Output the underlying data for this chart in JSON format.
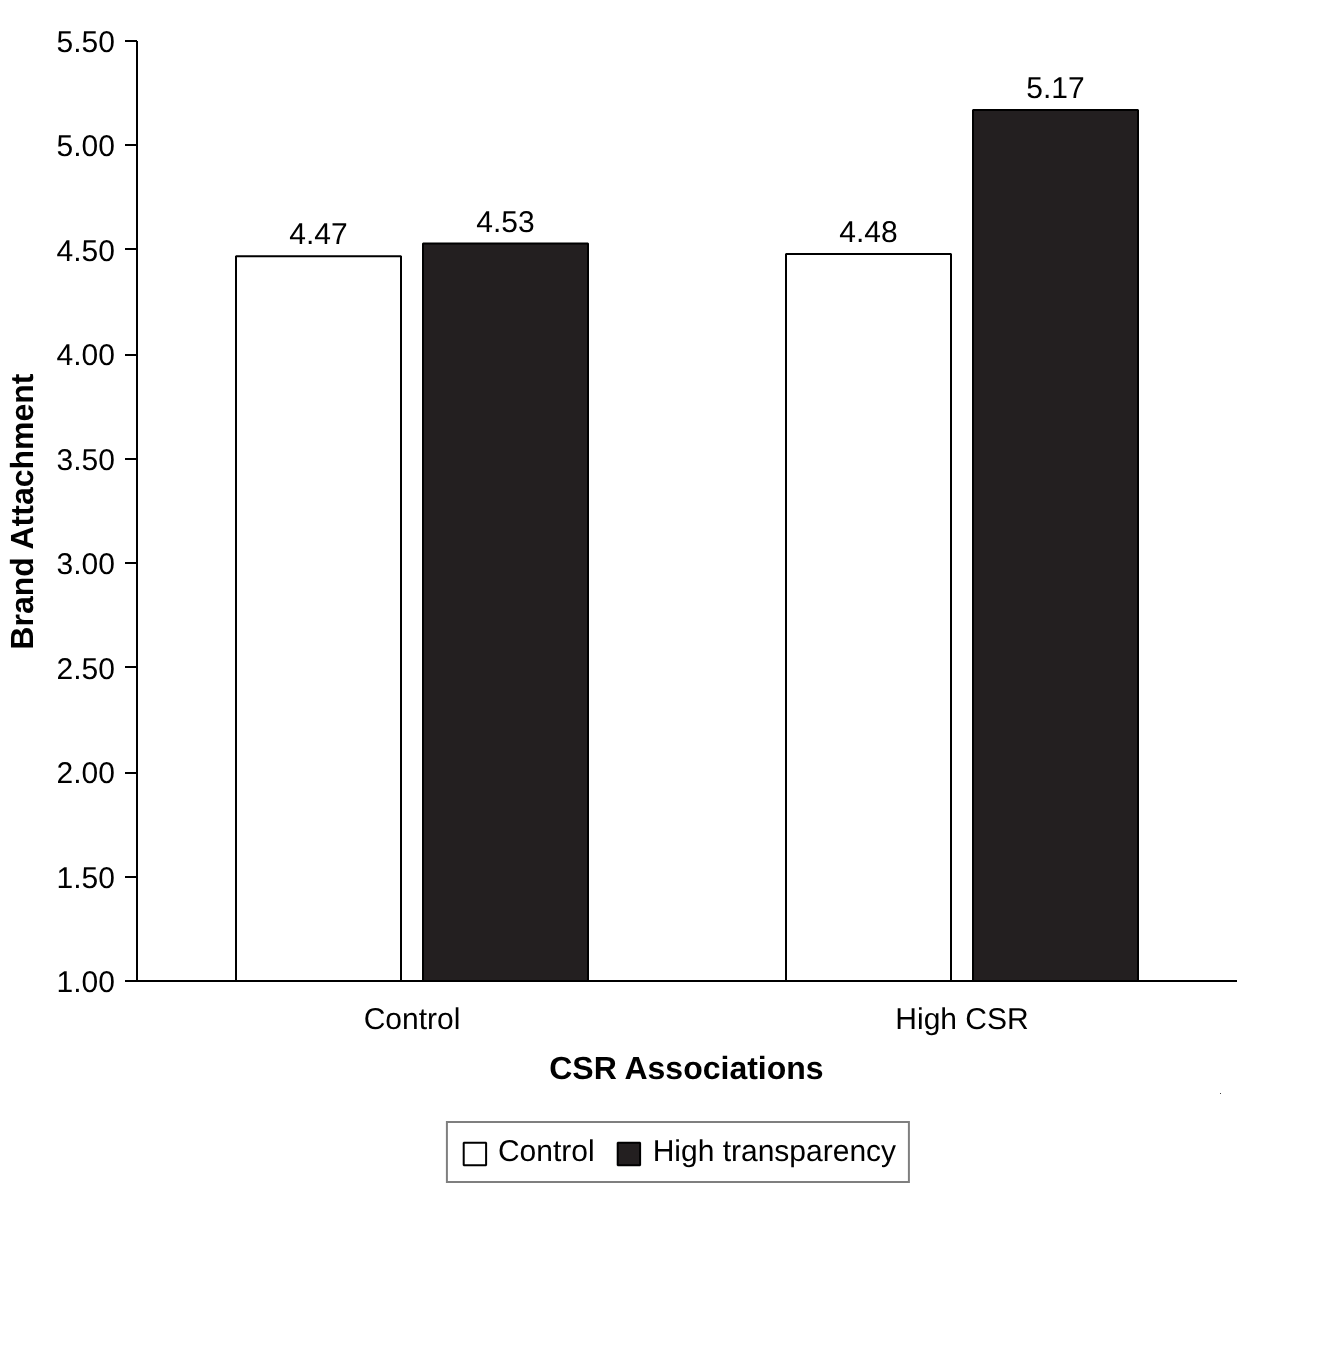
{
  "chart_data": {
    "type": "bar",
    "xlabel": "CSR Associations",
    "ylabel": "Brand Attachment",
    "categories": [
      "Control",
      "High CSR"
    ],
    "series": [
      {
        "name": "Control",
        "color": "#ffffff",
        "values": [
          4.47,
          4.48
        ]
      },
      {
        "name": "High transparency",
        "color": "#231f20",
        "values": [
          4.53,
          5.17
        ]
      }
    ],
    "ylim": [
      1,
      5.5
    ],
    "yticks": [
      {
        "value": 1,
        "label": "1.00"
      },
      {
        "value": 1.5,
        "label": "1.50"
      },
      {
        "value": 2,
        "label": "2.00"
      },
      {
        "value": 2.5,
        "label": "2.50"
      },
      {
        "value": 3,
        "label": "3.00"
      },
      {
        "value": 3.5,
        "label": "3.50"
      },
      {
        "value": 4,
        "label": "4.00"
      },
      {
        "value": 4.5,
        "label": "4.50"
      },
      {
        "value": 5,
        "label": "5.00"
      },
      {
        "value": 5.5,
        "label": "5.50"
      }
    ],
    "data_labels": true,
    "grid": false,
    "legend": "bottom"
  }
}
